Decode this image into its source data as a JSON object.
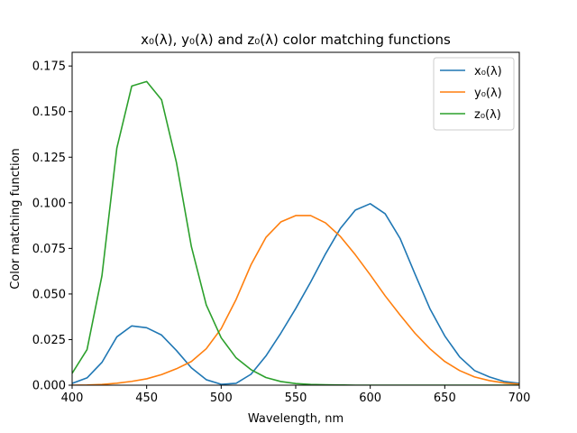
{
  "chart_data": {
    "type": "line",
    "title": "x₀(λ), y₀(λ) and z₀(λ) color matching functions",
    "xlabel": "Wavelength, nm",
    "ylabel": "Color matching function",
    "xlim": [
      400,
      700
    ],
    "ylim": [
      0,
      0.1825
    ],
    "x_ticks": [
      400,
      450,
      500,
      550,
      600,
      650,
      700
    ],
    "x_tick_labels": [
      "400",
      "450",
      "500",
      "550",
      "600",
      "650",
      "700"
    ],
    "y_ticks": [
      0,
      0.025,
      0.05,
      0.075,
      0.1,
      0.125,
      0.15,
      0.175
    ],
    "y_tick_labels": [
      "0.000",
      "0.025",
      "0.050",
      "0.075",
      "0.100",
      "0.125",
      "0.150",
      "0.175"
    ],
    "grid": false,
    "legend_position": "top-right",
    "x": [
      400,
      410,
      420,
      430,
      440,
      450,
      460,
      470,
      480,
      490,
      500,
      510,
      520,
      530,
      540,
      550,
      560,
      570,
      580,
      590,
      600,
      610,
      620,
      630,
      640,
      650,
      660,
      670,
      680,
      690,
      700
    ],
    "series": [
      {
        "name": "x₀(λ)",
        "color": "#1f77b4",
        "values": [
          0.001,
          0.004,
          0.0125,
          0.0265,
          0.0325,
          0.0315,
          0.0275,
          0.019,
          0.0095,
          0.003,
          0.0005,
          0.001,
          0.006,
          0.016,
          0.0285,
          0.042,
          0.0565,
          0.072,
          0.086,
          0.096,
          0.0995,
          0.094,
          0.0805,
          0.061,
          0.042,
          0.027,
          0.0155,
          0.008,
          0.0045,
          0.002,
          0.001
        ]
      },
      {
        "name": "y₀(λ)",
        "color": "#ff7f0e",
        "values": [
          0.0,
          0.0001,
          0.0004,
          0.0011,
          0.0021,
          0.0035,
          0.0058,
          0.009,
          0.013,
          0.02,
          0.031,
          0.047,
          0.066,
          0.081,
          0.0895,
          0.093,
          0.093,
          0.089,
          0.0815,
          0.0715,
          0.0605,
          0.049,
          0.0385,
          0.0285,
          0.02,
          0.013,
          0.008,
          0.0045,
          0.0025,
          0.0012,
          0.0006
        ]
      },
      {
        "name": "z₀(λ)",
        "color": "#2ca02c",
        "values": [
          0.0065,
          0.0195,
          0.06,
          0.13,
          0.164,
          0.1665,
          0.1565,
          0.122,
          0.076,
          0.044,
          0.026,
          0.015,
          0.0085,
          0.0042,
          0.002,
          0.0009,
          0.0004,
          0.0002,
          0.0001,
          0.0,
          0.0,
          0.0,
          0.0,
          0.0,
          0.0,
          0.0,
          0.0,
          0.0,
          0.0,
          0.0,
          0.0
        ]
      }
    ]
  }
}
